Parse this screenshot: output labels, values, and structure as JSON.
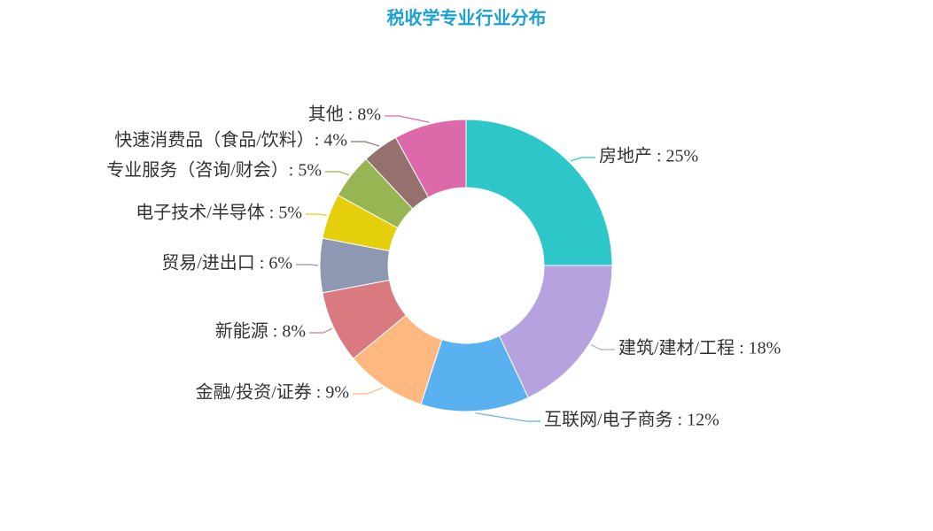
{
  "chart_data": {
    "type": "pie",
    "title": "税收学专业行业分布",
    "categories": [
      "房地产",
      "建筑/建材/工程",
      "互联网/电子商务",
      "金融/投资/证券",
      "新能源",
      "贸易/进出口",
      "电子技术/半导体",
      "专业服务（咨询/财会）",
      "快速消费品（食品/饮料）",
      "其他"
    ],
    "values": [
      25,
      18,
      12,
      9,
      8,
      6,
      5,
      5,
      4,
      8
    ],
    "labels": [
      "房地产 : 25%",
      "建筑/建材/工程 : 18%",
      "互联网/电子商务 : 12%",
      "金融/投资/证券 : 9%",
      "新能源 : 8%",
      "贸易/进出口 : 6%",
      "电子技术/半导体 : 5%",
      "专业服务（咨询/财会）: 5%",
      "快速消费品（食品/饮料）: 4%",
      "其他 : 8%"
    ],
    "colors": [
      "#2ec7c9",
      "#b6a2de",
      "#5ab1ef",
      "#ffb980",
      "#d87a80",
      "#8d98b3",
      "#e5cf0d",
      "#97b552",
      "#95706d",
      "#dc69aa"
    ],
    "legend": "none"
  }
}
